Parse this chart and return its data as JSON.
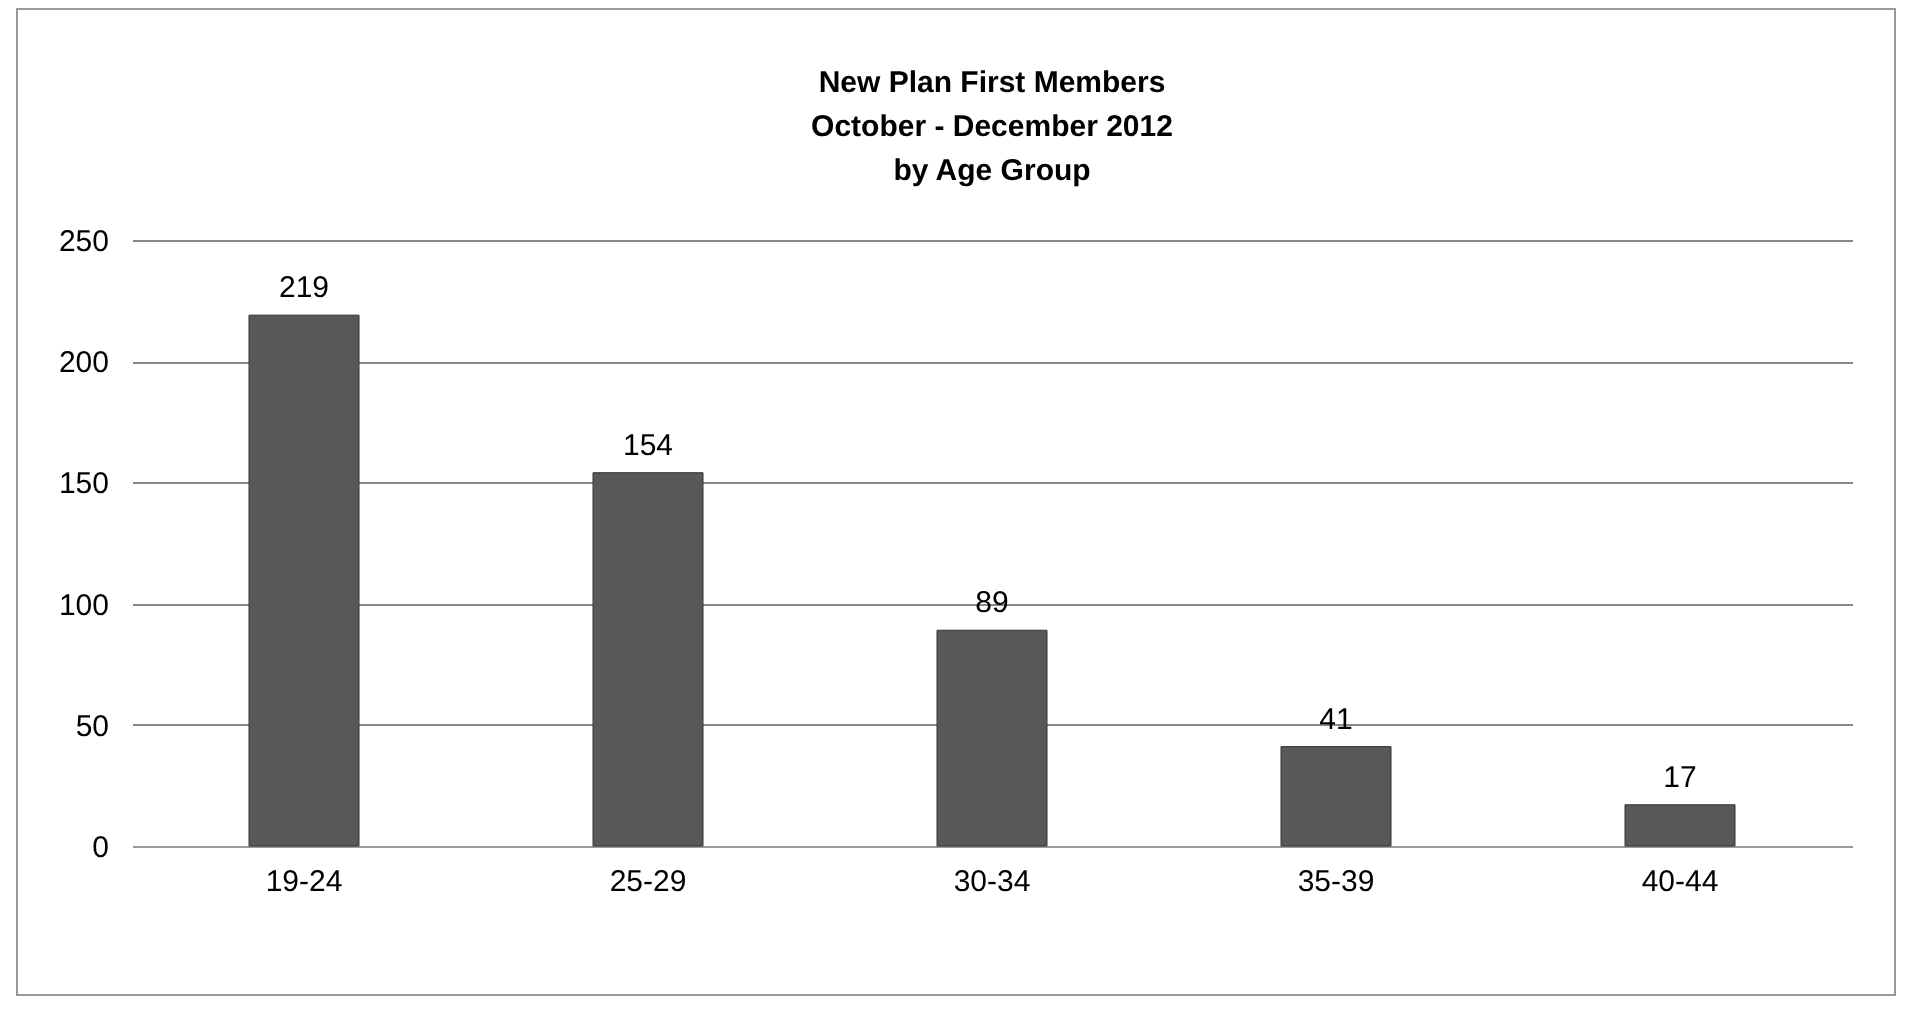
{
  "chart_data": {
    "type": "bar",
    "title": "New Plan First Members\nOctober - December 2012\nby Age Group",
    "categories": [
      "19-24",
      "25-29",
      "30-34",
      "35-39",
      "40-44"
    ],
    "values": [
      219,
      154,
      89,
      41,
      17
    ],
    "color": "#585858",
    "ylim": [
      0,
      250
    ],
    "yticks": [
      0,
      50,
      100,
      150,
      200,
      250
    ],
    "grid": "y",
    "data_labels": true
  }
}
